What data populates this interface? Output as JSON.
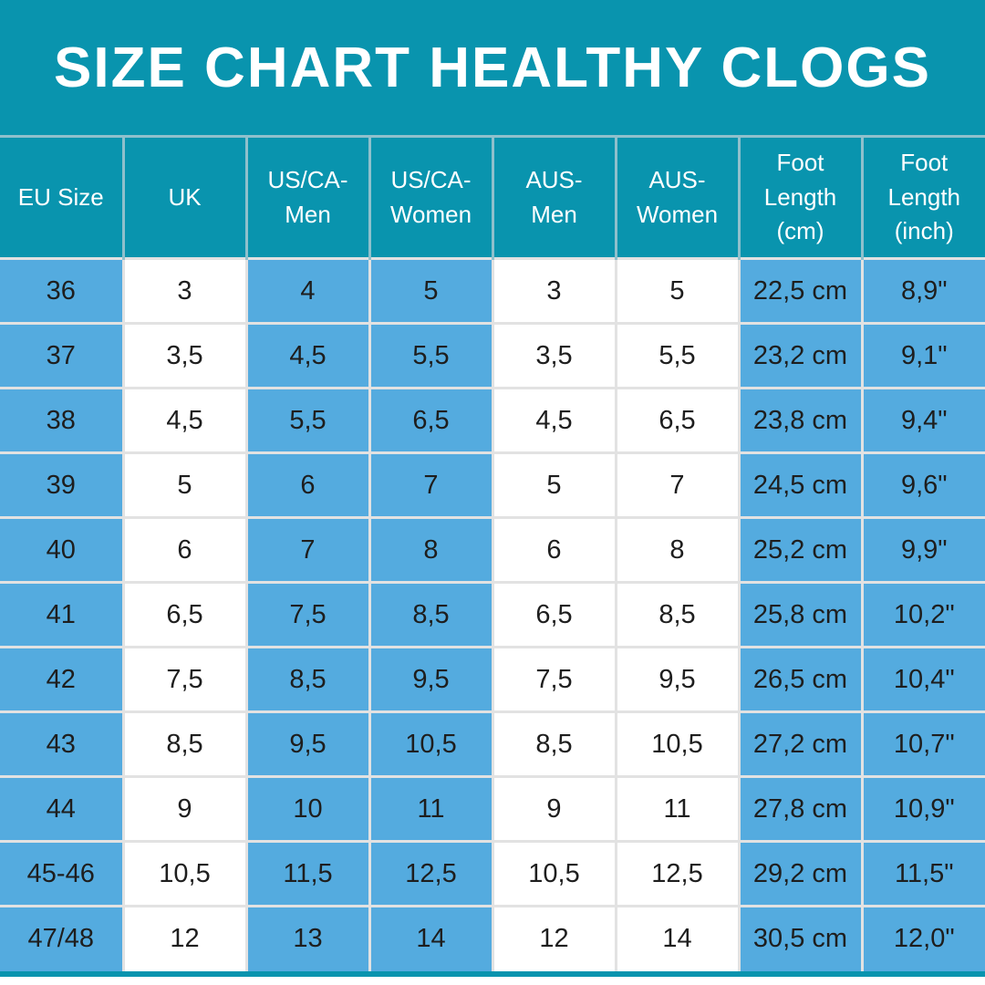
{
  "title": "SIZE CHART HEALTHY CLOGS",
  "colors": {
    "teal": "#0994AE",
    "blue": "#54ABDF",
    "white_cell": "#FFFFFF",
    "header_text": "#FFFFFF",
    "body_text": "#1E1E1E",
    "border_header": "#8FC0CC",
    "border_body": "#E2E2E2"
  },
  "chart_data": {
    "type": "table",
    "title": "SIZE CHART HEALTHY CLOGS",
    "columns": [
      "EU Size",
      "UK",
      "US/CA-Men",
      "US/CA-Women",
      "AUS-Men",
      "AUS-Women",
      "Foot Length (cm)",
      "Foot Length (inch)"
    ],
    "column_fills": [
      "blue",
      "white",
      "blue",
      "blue",
      "white",
      "white",
      "blue",
      "blue"
    ],
    "rows": [
      [
        "36",
        "3",
        "4",
        "5",
        "3",
        "5",
        "22,5 cm",
        "8,9\""
      ],
      [
        "37",
        "3,5",
        "4,5",
        "5,5",
        "3,5",
        "5,5",
        "23,2 cm",
        "9,1\""
      ],
      [
        "38",
        "4,5",
        "5,5",
        "6,5",
        "4,5",
        "6,5",
        "23,8 cm",
        "9,4\""
      ],
      [
        "39",
        "5",
        "6",
        "7",
        "5",
        "7",
        "24,5 cm",
        "9,6\""
      ],
      [
        "40",
        "6",
        "7",
        "8",
        "6",
        "8",
        "25,2 cm",
        "9,9\""
      ],
      [
        "41",
        "6,5",
        "7,5",
        "8,5",
        "6,5",
        "8,5",
        "25,8 cm",
        "10,2\""
      ],
      [
        "42",
        "7,5",
        "8,5",
        "9,5",
        "7,5",
        "9,5",
        "26,5 cm",
        "10,4\""
      ],
      [
        "43",
        "8,5",
        "9,5",
        "10,5",
        "8,5",
        "10,5",
        "27,2 cm",
        "10,7\""
      ],
      [
        "44",
        "9",
        "10",
        "11",
        "9",
        "11",
        "27,8 cm",
        "10,9\""
      ],
      [
        "45-46",
        "10,5",
        "11,5",
        "12,5",
        "10,5",
        "12,5",
        "29,2 cm",
        "11,5\""
      ],
      [
        "47/48",
        "12",
        "13",
        "14",
        "12",
        "14",
        "30,5 cm",
        "12,0\""
      ]
    ]
  }
}
